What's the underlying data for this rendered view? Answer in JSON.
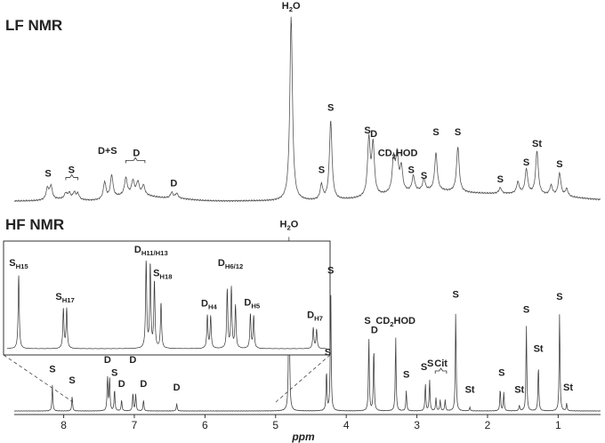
{
  "chart_data": [
    {
      "type": "line",
      "panel": "LF",
      "title": "LF NMR",
      "peaks": [
        {
          "ppm": 8.23,
          "h": 0.06
        },
        {
          "ppm": 8.18,
          "h": 0.07
        },
        {
          "ppm": 7.97,
          "h": 0.03
        },
        {
          "ppm": 7.92,
          "h": 0.03
        },
        {
          "ppm": 7.85,
          "h": 0.035
        },
        {
          "ppm": 7.8,
          "h": 0.03
        },
        {
          "ppm": 7.42,
          "h": 0.09
        },
        {
          "ppm": 7.32,
          "h": 0.12
        },
        {
          "ppm": 7.12,
          "h": 0.09
        },
        {
          "ppm": 7.02,
          "h": 0.07
        },
        {
          "ppm": 6.95,
          "h": 0.065
        },
        {
          "ppm": 6.87,
          "h": 0.05
        },
        {
          "ppm": 6.47,
          "h": 0.03
        },
        {
          "ppm": 6.4,
          "h": 0.025
        },
        {
          "ppm": 4.78,
          "h": 0.98
        },
        {
          "ppm": 4.35,
          "h": 0.08
        },
        {
          "ppm": 4.22,
          "h": 0.42
        },
        {
          "ppm": 3.68,
          "h": 0.3
        },
        {
          "ppm": 3.62,
          "h": 0.27
        },
        {
          "ppm": 3.33,
          "h": 0.18
        },
        {
          "ppm": 3.28,
          "h": 0.19
        },
        {
          "ppm": 3.22,
          "h": 0.13
        },
        {
          "ppm": 3.05,
          "h": 0.08
        },
        {
          "ppm": 2.9,
          "h": 0.06
        },
        {
          "ppm": 2.73,
          "h": 0.2
        },
        {
          "ppm": 2.42,
          "h": 0.24
        },
        {
          "ppm": 1.82,
          "h": 0.03
        },
        {
          "ppm": 1.57,
          "h": 0.06
        },
        {
          "ppm": 1.45,
          "h": 0.13
        },
        {
          "ppm": 1.3,
          "h": 0.23
        },
        {
          "ppm": 1.1,
          "h": 0.05
        },
        {
          "ppm": 0.98,
          "h": 0.12
        },
        {
          "ppm": 0.88,
          "h": 0.04
        }
      ],
      "peak_width_ppm": 0.022,
      "xlabel": "",
      "xlim": [
        8.7,
        0.4
      ]
    },
    {
      "type": "line",
      "panel": "HF",
      "title": "HF NMR",
      "peaks": [
        {
          "ppm": 8.16,
          "h": 0.14
        },
        {
          "ppm": 7.88,
          "h": 0.08
        },
        {
          "ppm": 7.38,
          "h": 0.19
        },
        {
          "ppm": 7.35,
          "h": 0.18
        },
        {
          "ppm": 7.28,
          "h": 0.12
        },
        {
          "ppm": 7.18,
          "h": 0.06
        },
        {
          "ppm": 7.02,
          "h": 0.1
        },
        {
          "ppm": 6.98,
          "h": 0.09
        },
        {
          "ppm": 6.87,
          "h": 0.06
        },
        {
          "ppm": 6.4,
          "h": 0.04
        },
        {
          "ppm": 4.81,
          "h": 0.95
        },
        {
          "ppm": 4.28,
          "h": 0.22
        },
        {
          "ppm": 4.22,
          "h": 0.67
        },
        {
          "ppm": 3.68,
          "h": 0.4
        },
        {
          "ppm": 3.61,
          "h": 0.35
        },
        {
          "ppm": 3.3,
          "h": 0.4
        },
        {
          "ppm": 3.15,
          "h": 0.11
        },
        {
          "ppm": 2.88,
          "h": 0.15
        },
        {
          "ppm": 2.82,
          "h": 0.17
        },
        {
          "ppm": 2.73,
          "h": 0.07
        },
        {
          "ppm": 2.67,
          "h": 0.06
        },
        {
          "ppm": 2.6,
          "h": 0.06
        },
        {
          "ppm": 2.45,
          "h": 0.54
        },
        {
          "ppm": 2.25,
          "h": 0.02
        },
        {
          "ppm": 1.82,
          "h": 0.12
        },
        {
          "ppm": 1.77,
          "h": 0.1
        },
        {
          "ppm": 1.55,
          "h": 0.03
        },
        {
          "ppm": 1.45,
          "h": 0.46
        },
        {
          "ppm": 1.28,
          "h": 0.25
        },
        {
          "ppm": 0.98,
          "h": 0.53
        },
        {
          "ppm": 0.88,
          "h": 0.04
        }
      ],
      "peak_width_ppm": 0.007,
      "xlabel": "ppm",
      "xlim": [
        8.7,
        0.4
      ],
      "xticks": [
        8,
        7,
        6,
        5,
        4,
        3,
        2,
        1
      ]
    },
    {
      "type": "line",
      "panel": "HF inset",
      "peaks": [
        {
          "ppm": 8.16,
          "h": 0.78
        },
        {
          "ppm": 7.89,
          "h": 0.42
        },
        {
          "ppm": 7.87,
          "h": 0.42
        },
        {
          "ppm": 7.39,
          "h": 0.92
        },
        {
          "ppm": 7.365,
          "h": 0.88
        },
        {
          "ppm": 7.34,
          "h": 0.7
        },
        {
          "ppm": 7.3,
          "h": 0.48
        },
        {
          "ppm": 7.02,
          "h": 0.35
        },
        {
          "ppm": 7.0,
          "h": 0.34
        },
        {
          "ppm": 6.9,
          "h": 0.62
        },
        {
          "ppm": 6.875,
          "h": 0.64
        },
        {
          "ppm": 6.85,
          "h": 0.45
        },
        {
          "ppm": 6.76,
          "h": 0.36
        },
        {
          "ppm": 6.74,
          "h": 0.34
        },
        {
          "ppm": 6.38,
          "h": 0.22
        },
        {
          "ppm": 6.36,
          "h": 0.2
        }
      ],
      "peak_width_ppm": 0.004,
      "xlim": [
        8.23,
        6.3
      ]
    }
  ],
  "labels": {
    "lf": [
      {
        "text": "S",
        "ppm": 8.22,
        "h": 0.11
      },
      {
        "text": "S",
        "ppm": 7.89,
        "h": 0.13,
        "bracket": [
          7.97,
          7.8
        ]
      },
      {
        "text": "D+S",
        "ppm": 7.38,
        "h": 0.23
      },
      {
        "text": "D",
        "ppm": 6.97,
        "h": 0.22,
        "bracket": [
          7.12,
          6.85
        ]
      },
      {
        "text": "D",
        "ppm": 6.44,
        "h": 0.06
      },
      {
        "text": "S",
        "ppm": 4.35,
        "h": 0.13
      },
      {
        "text": "S",
        "ppm": 4.22,
        "h": 0.46
      },
      {
        "text": "S",
        "ppm": 3.7,
        "h": 0.34
      },
      {
        "text": "D",
        "ppm": 3.61,
        "h": 0.32
      },
      {
        "text": "S",
        "ppm": 3.08,
        "h": 0.13
      },
      {
        "text": "S",
        "ppm": 2.9,
        "h": 0.1
      },
      {
        "text": "S",
        "ppm": 2.73,
        "h": 0.33
      },
      {
        "text": "S",
        "ppm": 2.42,
        "h": 0.33
      },
      {
        "text": "S",
        "ppm": 1.82,
        "h": 0.08
      },
      {
        "text": "S",
        "ppm": 1.45,
        "h": 0.17
      },
      {
        "text": "St",
        "ppm": 1.3,
        "h": 0.27
      },
      {
        "text": "S",
        "ppm": 0.98,
        "h": 0.16
      }
    ],
    "hf": [
      {
        "text": "S",
        "ppm": 8.16,
        "h": 0.19
      },
      {
        "text": "S",
        "ppm": 7.88,
        "h": 0.13
      },
      {
        "text": "D",
        "ppm": 7.38,
        "h": 0.24
      },
      {
        "text": "S",
        "ppm": 7.28,
        "h": 0.17
      },
      {
        "text": "D",
        "ppm": 7.18,
        "h": 0.11
      },
      {
        "text": "D",
        "ppm": 7.02,
        "h": 0.24
      },
      {
        "text": "D",
        "ppm": 6.87,
        "h": 0.11
      },
      {
        "text": "D",
        "ppm": 6.4,
        "h": 0.09
      },
      {
        "text": "S",
        "ppm": 4.26,
        "h": 0.28
      },
      {
        "text": "S",
        "ppm": 4.22,
        "h": 0.72
      },
      {
        "text": "S",
        "ppm": 3.7,
        "h": 0.45
      },
      {
        "text": "D",
        "ppm": 3.6,
        "h": 0.4
      },
      {
        "text": "S",
        "ppm": 3.15,
        "h": 0.16
      },
      {
        "text": "S",
        "ppm": 2.9,
        "h": 0.2
      },
      {
        "text": "S",
        "ppm": 2.81,
        "h": 0.22
      },
      {
        "text": "Cit",
        "ppm": 2.66,
        "h": 0.22,
        "bracket": [
          2.74,
          2.58
        ]
      },
      {
        "text": "S",
        "ppm": 2.45,
        "h": 0.59
      },
      {
        "text": "St",
        "ppm": 2.25,
        "h": 0.08
      },
      {
        "text": "S",
        "ppm": 1.8,
        "h": 0.17
      },
      {
        "text": "St",
        "ppm": 1.55,
        "h": 0.08
      },
      {
        "text": "S",
        "ppm": 1.45,
        "h": 0.51
      },
      {
        "text": "St",
        "ppm": 1.28,
        "h": 0.3
      },
      {
        "text": "S",
        "ppm": 0.98,
        "h": 0.58
      },
      {
        "text": "St",
        "ppm": 0.86,
        "h": 0.09
      }
    ],
    "inset": [
      {
        "text": "S",
        "sub": "H15",
        "ppm": 8.16,
        "h": 0.84
      },
      {
        "text": "S",
        "sub": "H17",
        "ppm": 7.88,
        "h": 0.48
      },
      {
        "text": "D",
        "sub": "H11/H13",
        "ppm": 7.36,
        "h": 0.98
      },
      {
        "text": "S",
        "sub": "H18",
        "ppm": 7.29,
        "h": 0.73
      },
      {
        "text": "D",
        "sub": "H4",
        "ppm": 7.01,
        "h": 0.41
      },
      {
        "text": "D",
        "sub": "H6/12",
        "ppm": 6.88,
        "h": 0.84
      },
      {
        "text": "D",
        "sub": "H5",
        "ppm": 6.75,
        "h": 0.42
      },
      {
        "text": "D",
        "sub": "H7",
        "ppm": 6.37,
        "h": 0.29
      }
    ],
    "water_lf": {
      "text": "H",
      "sub": "2",
      "tail": "O",
      "ppm": 4.78,
      "h": 1.0
    },
    "water_hf": {
      "text": "H",
      "sub": "2",
      "tail": "O",
      "ppm": 4.81,
      "h": 0.97
    },
    "cd2hod_lf": {
      "text": "CD",
      "sub": "2",
      "tail": "HOD",
      "ppm": 3.27,
      "h": 0.22
    },
    "cd2hod_hf": {
      "text": "CD",
      "sub": "2",
      "tail": "HOD",
      "ppm": 3.3,
      "h": 0.45
    }
  }
}
